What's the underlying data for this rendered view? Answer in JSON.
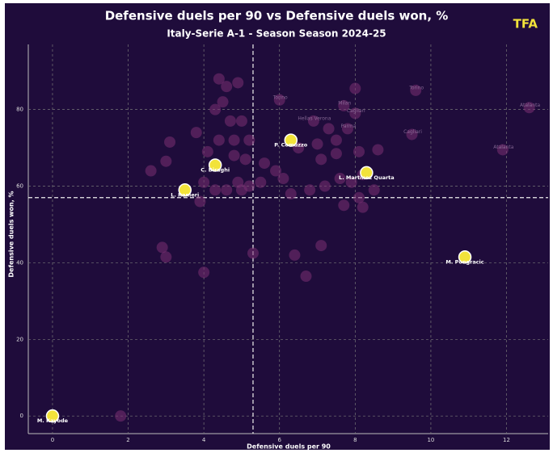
{
  "chart_data": {
    "type": "scatter",
    "title": "Defensive duels per 90 vs Defensive duels won, %",
    "subtitle": "Italy-Serie A-1 - Season Season 2024-25",
    "brand": "TFA",
    "x_label": "Defensive duels per 90",
    "y_label": "Defensive duels won, %",
    "xlim": [
      -0.64,
      13.1
    ],
    "ylim": [
      -4.6,
      97
    ],
    "xticks": [
      0,
      2,
      4,
      6,
      8,
      10,
      12
    ],
    "yticks": [
      0,
      20,
      40,
      60,
      80
    ],
    "grid": true,
    "x_mean": 5.3,
    "y_mean": 57,
    "others": {
      "color": "#7a2f72",
      "x": [
        4.4,
        4.6,
        4.9,
        4.5,
        4.3,
        5.0,
        4.7,
        3.8,
        3.1,
        4.4,
        4.8,
        5.2,
        4.1,
        4.8,
        5.1,
        5.6,
        5.9,
        6.1,
        5.5,
        5.2,
        4.6,
        4.9,
        4.0,
        3.0,
        2.6,
        5.0,
        4.3,
        3.9,
        6.3,
        6.8,
        7.2,
        7.6,
        7.9,
        8.2,
        8.1,
        7.7,
        8.5,
        8.2,
        7.1,
        7.5,
        8.1,
        8.6,
        6.5,
        7.0,
        7.5,
        7.8,
        8.0,
        7.7,
        8.0,
        9.6,
        6.0,
        6.9,
        7.3,
        9.5,
        11.9,
        12.6,
        5.3,
        2.9,
        3.0,
        4.0,
        6.7,
        6.4,
        7.1,
        1.8
      ],
      "values": [
        88,
        86,
        87,
        82,
        80,
        77,
        77,
        74,
        71.5,
        72,
        72,
        72,
        69,
        68,
        67,
        66,
        64,
        62,
        61,
        60,
        59,
        61,
        61,
        66.5,
        64,
        59,
        59,
        56,
        58,
        59,
        60,
        62,
        61,
        63,
        57,
        55,
        59,
        54.5,
        67,
        68.5,
        69,
        69.5,
        70,
        71,
        72,
        75,
        79,
        81,
        85.5,
        85,
        82.5,
        77,
        75,
        73.5,
        69.5,
        80.5,
        42.5,
        44,
        41.5,
        37.5,
        36.5,
        42,
        44.5,
        0
      ],
      "labels": [
        null,
        null,
        null,
        null,
        null,
        null,
        null,
        null,
        null,
        null,
        null,
        null,
        null,
        null,
        null,
        null,
        null,
        null,
        null,
        null,
        null,
        null,
        null,
        null,
        null,
        null,
        null,
        null,
        null,
        null,
        null,
        null,
        null,
        null,
        null,
        null,
        null,
        null,
        null,
        null,
        null,
        null,
        null,
        null,
        null,
        "Parma",
        "Cagliari",
        "Milan",
        null,
        "Torino",
        "Torino",
        "Hellas Verona",
        null,
        "Cagliari",
        "Atalanta",
        "Atalanta",
        null,
        null,
        null,
        null,
        null,
        null,
        null,
        null
      ]
    },
    "highlighted": {
      "color": "#f2e33a",
      "names": [
        "M. Kayode",
        "L. Ranieri",
        "C. Biraghi",
        "P. Comuzzo",
        "L. Martinez Quarta",
        "M. Pongracic"
      ],
      "x": [
        0,
        3.5,
        4.3,
        6.3,
        8.3,
        10.9
      ],
      "values": [
        0,
        59,
        65.5,
        72,
        63.5,
        41.5
      ]
    }
  }
}
